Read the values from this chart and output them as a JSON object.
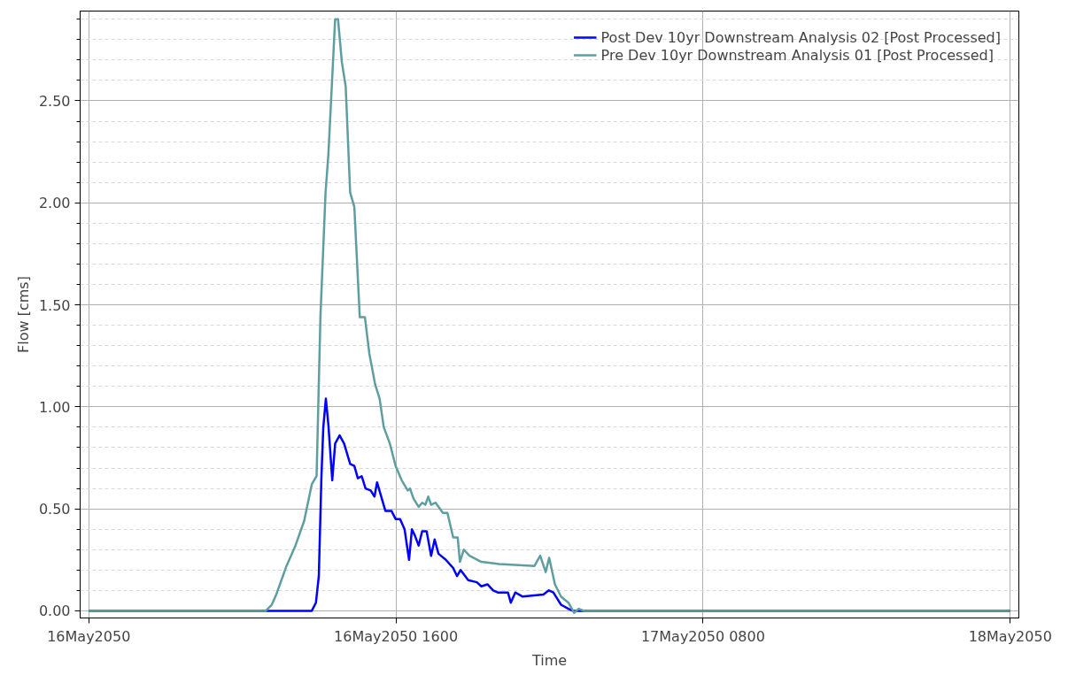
{
  "chart_data": {
    "type": "line",
    "xlabel": "Time",
    "ylabel": "Flow [cms]",
    "xlim": [
      "2050-05-15T23:33",
      "2050-05-18T00:27"
    ],
    "ylim": [
      -0.035,
      2.94
    ],
    "xticks": [
      {
        "value": "2050-05-16T00:00",
        "label": "16May2050"
      },
      {
        "value": "2050-05-16T16:00",
        "label": "16May2050 1600"
      },
      {
        "value": "2050-05-17T08:00",
        "label": "17May2050 0800"
      },
      {
        "value": "2050-05-18T00:00",
        "label": "18May2050"
      }
    ],
    "yticks": [
      {
        "value": 0,
        "label": "0.00"
      },
      {
        "value": 0.1,
        "label": null
      },
      {
        "value": 0.2,
        "label": null
      },
      {
        "value": 0.3,
        "label": null
      },
      {
        "value": 0.4,
        "label": null
      },
      {
        "value": 0.5,
        "label": "0.50"
      },
      {
        "value": 0.6,
        "label": null
      },
      {
        "value": 0.7,
        "label": null
      },
      {
        "value": 0.8,
        "label": null
      },
      {
        "value": 0.9,
        "label": null
      },
      {
        "value": 1.0,
        "label": "1.00"
      },
      {
        "value": 1.1,
        "label": null
      },
      {
        "value": 1.2,
        "label": null
      },
      {
        "value": 1.3,
        "label": null
      },
      {
        "value": 1.4,
        "label": null
      },
      {
        "value": 1.5,
        "label": "1.50"
      },
      {
        "value": 1.6,
        "label": null
      },
      {
        "value": 1.7,
        "label": null
      },
      {
        "value": 1.8,
        "label": null
      },
      {
        "value": 1.9,
        "label": null
      },
      {
        "value": 2.0,
        "label": "2.00"
      },
      {
        "value": 2.1,
        "label": null
      },
      {
        "value": 2.2,
        "label": null
      },
      {
        "value": 2.3,
        "label": null
      },
      {
        "value": 2.4,
        "label": null
      },
      {
        "value": 2.5,
        "label": "2.50"
      },
      {
        "value": 2.6,
        "label": null
      },
      {
        "value": 2.7,
        "label": null
      },
      {
        "value": 2.8,
        "label": null
      },
      {
        "value": 2.9,
        "label": null
      }
    ],
    "grid": true,
    "legend": "top right",
    "marker": "none",
    "line_style": "solid",
    "series": [
      {
        "name": "Post Dev 10yr Downstream Analysis 02 [Post Processed]",
        "color": "#0000ff",
        "x": [
          "2050-05-16T00:00",
          "2050-05-16T11:37",
          "2050-05-16T11:50",
          "2050-05-16T11:59",
          "2050-05-16T12:07",
          "2050-05-16T12:13",
          "2050-05-16T12:21",
          "2050-05-16T12:29",
          "2050-05-16T12:41",
          "2050-05-16T12:50",
          "2050-05-16T13:04",
          "2050-05-16T13:18",
          "2050-05-16T13:37",
          "2050-05-16T13:50",
          "2050-05-16T14:01",
          "2050-05-16T14:13",
          "2050-05-16T14:25",
          "2050-05-16T14:41",
          "2050-05-16T14:53",
          "2050-05-16T15:01",
          "2050-05-16T15:27",
          "2050-05-16T15:46",
          "2050-05-16T15:59",
          "2050-05-16T16:13",
          "2050-05-16T16:27",
          "2050-05-16T16:41",
          "2050-05-16T16:50",
          "2050-05-16T16:59",
          "2050-05-16T17:11",
          "2050-05-16T17:22",
          "2050-05-16T17:36",
          "2050-05-16T17:50",
          "2050-05-16T18:01",
          "2050-05-16T18:13",
          "2050-05-16T18:36",
          "2050-05-16T18:59",
          "2050-05-16T19:11",
          "2050-05-16T19:22",
          "2050-05-16T19:46",
          "2050-05-16T20:13",
          "2050-05-16T20:27",
          "2050-05-16T20:46",
          "2050-05-16T21:04",
          "2050-05-16T21:18",
          "2050-05-16T21:50",
          "2050-05-16T21:59",
          "2050-05-16T22:13",
          "2050-05-16T22:36",
          "2050-05-16T23:41",
          "2050-05-16T23:58",
          "2050-05-17T00:12",
          "2050-05-17T00:36",
          "2050-05-17T00:59",
          "2050-05-17T01:13",
          "2050-05-18T00:00"
        ],
        "values": [
          0,
          0,
          0.04,
          0.17,
          0.65,
          0.9,
          1.04,
          0.91,
          0.64,
          0.82,
          0.86,
          0.82,
          0.72,
          0.71,
          0.65,
          0.66,
          0.6,
          0.59,
          0.56,
          0.63,
          0.49,
          0.49,
          0.45,
          0.45,
          0.4,
          0.25,
          0.4,
          0.37,
          0.32,
          0.39,
          0.39,
          0.27,
          0.35,
          0.28,
          0.25,
          0.21,
          0.17,
          0.2,
          0.15,
          0.14,
          0.12,
          0.13,
          0.1,
          0.09,
          0.09,
          0.04,
          0.09,
          0.07,
          0.08,
          0.1,
          0.09,
          0.03,
          0.01,
          0,
          0
        ]
      },
      {
        "name": "Pre Dev 10yr Downstream Analysis 01 [Post Processed]",
        "color": "#5f9ea0",
        "x": [
          "2050-05-16T00:00",
          "2050-05-16T09:13",
          "2050-05-16T09:32",
          "2050-05-16T09:46",
          "2050-05-16T10:18",
          "2050-05-16T10:46",
          "2050-05-16T11:13",
          "2050-05-16T11:37",
          "2050-05-16T11:52",
          "2050-05-16T12:04",
          "2050-05-16T12:20",
          "2050-05-16T12:29",
          "2050-05-16T12:50",
          "2050-05-16T12:59",
          "2050-05-16T13:11",
          "2050-05-16T13:23",
          "2050-05-16T13:37",
          "2050-05-16T13:50",
          "2050-05-16T14:07",
          "2050-05-16T14:13",
          "2050-05-16T14:23",
          "2050-05-16T14:37",
          "2050-05-16T14:55",
          "2050-05-16T15:09",
          "2050-05-16T15:22",
          "2050-05-16T15:41",
          "2050-05-16T15:59",
          "2050-05-16T16:18",
          "2050-05-16T16:37",
          "2050-05-16T16:44",
          "2050-05-16T16:55",
          "2050-05-16T17:11",
          "2050-05-16T17:22",
          "2050-05-16T17:32",
          "2050-05-16T17:41",
          "2050-05-16T17:50",
          "2050-05-16T18:04",
          "2050-05-16T18:27",
          "2050-05-16T18:41",
          "2050-05-16T18:59",
          "2050-05-16T19:13",
          "2050-05-16T19:20",
          "2050-05-16T19:32",
          "2050-05-16T19:50",
          "2050-05-16T20:27",
          "2050-05-16T21:22",
          "2050-05-16T23:13",
          "2050-05-16T23:31",
          "2050-05-16T23:48",
          "2050-05-16T23:59",
          "2050-05-17T00:17",
          "2050-05-17T00:36",
          "2050-05-17T00:59",
          "2050-05-17T01:17",
          "2050-05-17T01:31",
          "2050-05-17T01:48",
          "2050-05-18T00:00"
        ],
        "values": [
          0,
          0,
          0.03,
          0.08,
          0.22,
          0.32,
          0.44,
          0.62,
          0.66,
          1.44,
          2.05,
          2.24,
          2.9,
          2.9,
          2.69,
          2.57,
          2.05,
          1.98,
          1.44,
          1.44,
          1.44,
          1.26,
          1.11,
          1.04,
          0.9,
          0.82,
          0.71,
          0.64,
          0.59,
          0.6,
          0.55,
          0.51,
          0.53,
          0.52,
          0.56,
          0.52,
          0.53,
          0.48,
          0.48,
          0.36,
          0.36,
          0.24,
          0.3,
          0.27,
          0.24,
          0.23,
          0.22,
          0.27,
          0.19,
          0.26,
          0.13,
          0.07,
          0.04,
          -0.01,
          0.01,
          0,
          0
        ]
      }
    ]
  }
}
